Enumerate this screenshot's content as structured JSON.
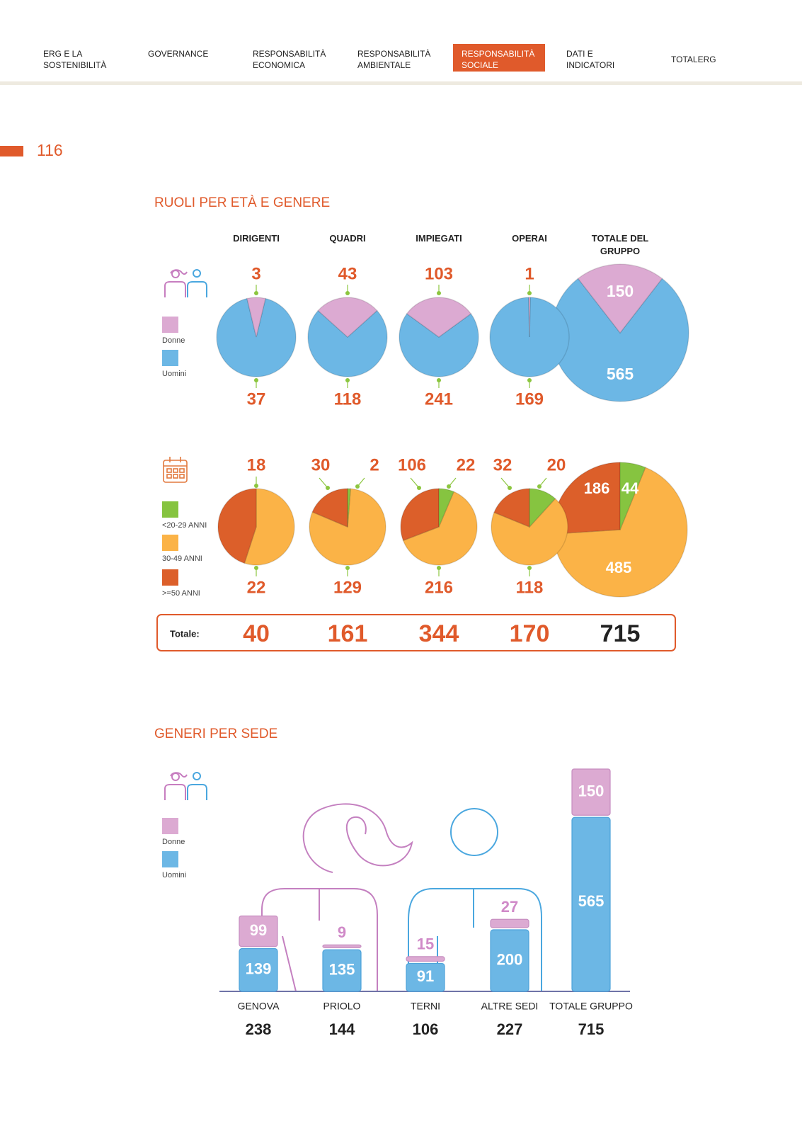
{
  "nav": [
    "ERG E LA SOSTENIBILITÀ",
    "GOVERNANCE",
    "RESPONSABILITÀ ECONOMICA",
    "RESPONSABILITÀ AMBIENTALE",
    "RESPONSABILITÀ SOCIALE",
    "DATI E INDICATORI",
    "TOTALERG"
  ],
  "page_number": "116",
  "roles": {
    "title": "RUOLI PER ETÀ E GENERE",
    "columns": [
      "DIRIGENTI",
      "QUADRI",
      "IMPIEGATI",
      "OPERAI",
      "TOTALE DEL GRUPPO"
    ],
    "gender": {
      "series": [
        {
          "name": "Donne",
          "color": "#dcaad2",
          "values": [
            3,
            43,
            103,
            1,
            150
          ]
        },
        {
          "name": "Uomini",
          "color": "#6cb7e5",
          "values": [
            37,
            118,
            241,
            169,
            565
          ]
        }
      ]
    },
    "age": {
      "series": [
        {
          "name": "<20-29 ANNI",
          "color": "#86c440",
          "values": [
            null,
            2,
            22,
            20,
            44
          ]
        },
        {
          "name": "30-49 ANNI",
          "color": "#fbb347",
          "values": [
            22,
            129,
            216,
            118,
            485
          ]
        },
        {
          "name": ">=50 ANNI",
          "color": "#dc5f2a",
          "values": [
            18,
            30,
            106,
            32,
            186
          ]
        }
      ]
    },
    "total_label": "Totale:",
    "totals": [
      40,
      161,
      344,
      170,
      715
    ]
  },
  "sites": {
    "title": "GENERI PER SEDE",
    "categories": [
      "GENOVA",
      "PRIOLO",
      "TERNI",
      "ALTRE SEDI",
      "TOTALE GRUPPO"
    ],
    "series": [
      {
        "name": "Donne",
        "color": "#dcaad2",
        "values": [
          99,
          9,
          15,
          27,
          150
        ]
      },
      {
        "name": "Uomini",
        "color": "#6cb7e5",
        "values": [
          139,
          135,
          91,
          200,
          565
        ]
      }
    ],
    "totals": [
      238,
      144,
      106,
      227,
      715
    ]
  }
}
